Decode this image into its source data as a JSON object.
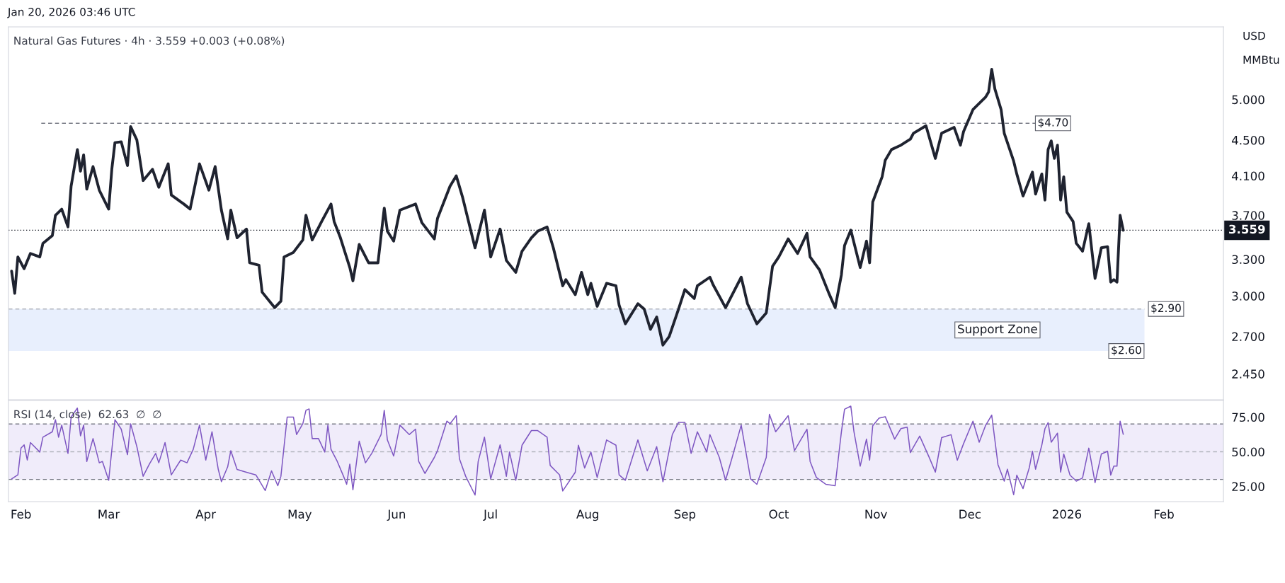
{
  "chart_data": [
    {
      "type": "line",
      "title": "Natural Gas Futures · 4h · 3.559 +0.003 (+0.08%)",
      "annotations": [
        "Jan 20, 2026 03:46 UTC",
        "USD",
        "MMBtu",
        {
          "text": "$2.60",
          "x": "2026-01-20",
          "y": 2.6
        }
      ],
      "x": [
        "2025-01-29",
        "2025-01-30",
        "2025-01-31",
        "2025-02-02",
        "2025-02-04",
        "2025-02-07",
        "2025-02-08",
        "2025-02-11",
        "2025-02-12",
        "2025-02-14",
        "2025-02-16",
        "2025-02-17",
        "2025-02-19",
        "2025-02-20",
        "2025-02-21",
        "2025-02-22",
        "2025-02-24",
        "2025-02-26",
        "2025-03-01",
        "2025-03-02",
        "2025-03-03",
        "2025-03-05",
        "2025-03-07",
        "2025-03-08",
        "2025-03-10",
        "2025-03-12",
        "2025-03-15",
        "2025-03-17",
        "2025-03-20",
        "2025-03-21",
        "2025-03-25",
        "2025-03-27",
        "2025-03-30",
        "2025-04-02",
        "2025-04-04",
        "2025-04-06",
        "2025-04-08",
        "2025-04-09",
        "2025-04-11",
        "2025-04-14",
        "2025-04-15",
        "2025-04-18",
        "2025-04-19",
        "2025-04-23",
        "2025-04-25",
        "2025-04-26",
        "2025-04-29",
        "2025-05-02",
        "2025-05-03",
        "2025-05-05",
        "2025-05-08",
        "2025-05-11",
        "2025-05-12",
        "2025-05-14",
        "2025-05-17",
        "2025-05-18",
        "2025-05-20",
        "2025-05-23",
        "2025-05-26",
        "2025-05-28",
        "2025-05-29",
        "2025-05-31",
        "2025-06-02",
        "2025-06-07",
        "2025-06-09",
        "2025-06-13",
        "2025-06-14",
        "2025-06-18",
        "2025-06-20",
        "2025-06-22",
        "2025-06-26",
        "2025-06-29",
        "2025-07-01",
        "2025-07-04",
        "2025-07-06",
        "2025-07-09",
        "2025-07-11",
        "2025-07-14",
        "2025-07-16",
        "2025-07-19",
        "2025-07-21",
        "2025-07-24",
        "2025-07-25",
        "2025-07-28",
        "2025-07-30",
        "2025-08-01",
        "2025-08-02",
        "2025-08-04",
        "2025-08-07",
        "2025-08-10",
        "2025-08-11",
        "2025-08-13",
        "2025-08-17",
        "2025-08-19",
        "2025-08-21",
        "2025-08-23",
        "2025-08-25",
        "2025-08-27",
        "2025-08-30",
        "2025-09-01",
        "2025-09-04",
        "2025-09-05",
        "2025-09-09",
        "2025-09-10",
        "2025-09-14",
        "2025-09-19",
        "2025-09-21",
        "2025-09-24",
        "2025-09-27",
        "2025-09-29",
        "2025-10-01",
        "2025-10-04",
        "2025-10-07",
        "2025-10-10",
        "2025-10-11",
        "2025-10-14",
        "2025-10-17",
        "2025-10-19",
        "2025-10-21",
        "2025-10-22",
        "2025-10-24",
        "2025-10-27",
        "2025-10-29",
        "2025-10-30",
        "2025-10-31",
        "2025-11-03",
        "2025-11-04",
        "2025-11-06",
        "2025-11-09",
        "2025-11-12",
        "2025-11-13",
        "2025-11-17",
        "2025-11-20",
        "2025-11-22",
        "2025-11-26",
        "2025-11-28",
        "2025-11-29",
        "2025-12-02",
        "2025-12-06",
        "2025-12-07",
        "2025-12-08",
        "2025-12-09",
        "2025-12-11",
        "2025-12-12",
        "2025-12-15",
        "2025-12-16",
        "2025-12-18",
        "2025-12-21",
        "2025-12-22",
        "2025-12-24",
        "2025-12-25",
        "2025-12-26",
        "2025-12-27",
        "2025-12-28",
        "2025-12-29",
        "2025-12-30",
        "2025-12-31",
        "2026-01-01",
        "2026-01-03",
        "2026-01-04",
        "2026-01-06",
        "2026-01-08",
        "2026-01-10",
        "2026-01-12",
        "2026-01-14",
        "2026-01-15",
        "2026-01-16",
        "2026-01-17",
        "2026-01-18",
        "2026-01-19"
      ],
      "series": [
        {
          "color": "#1f2330",
          "values": [
            3.2,
            3.02,
            3.32,
            3.22,
            3.35,
            3.32,
            3.44,
            3.51,
            3.7,
            3.76,
            3.59,
            3.99,
            4.39,
            4.15,
            4.33,
            3.96,
            4.2,
            3.95,
            3.76,
            4.17,
            4.47,
            4.48,
            4.21,
            4.66,
            4.5,
            4.05,
            4.17,
            3.98,
            4.23,
            3.9,
            3.81,
            3.76,
            4.23,
            3.95,
            4.2,
            3.75,
            3.48,
            3.75,
            3.49,
            3.57,
            3.27,
            3.25,
            3.03,
            2.91,
            2.96,
            3.32,
            3.36,
            3.47,
            3.7,
            3.47,
            3.64,
            3.81,
            3.64,
            3.49,
            3.23,
            3.12,
            3.43,
            3.27,
            3.27,
            3.77,
            3.55,
            3.46,
            3.75,
            3.81,
            3.63,
            3.48,
            3.67,
            3.99,
            4.1,
            3.88,
            3.4,
            3.75,
            3.32,
            3.57,
            3.29,
            3.19,
            3.37,
            3.49,
            3.55,
            3.59,
            3.4,
            3.08,
            3.13,
            3.01,
            3.19,
            3.01,
            3.1,
            2.92,
            3.1,
            3.08,
            2.93,
            2.79,
            2.94,
            2.9,
            2.75,
            2.84,
            2.64,
            2.7,
            2.9,
            3.05,
            2.98,
            3.08,
            3.15,
            3.09,
            2.91,
            3.15,
            2.94,
            2.79,
            2.87,
            3.24,
            3.32,
            3.48,
            3.35,
            3.53,
            3.32,
            3.21,
            3.02,
            2.91,
            3.17,
            3.42,
            3.56,
            3.23,
            3.46,
            3.27,
            3.83,
            4.09,
            4.27,
            4.39,
            4.44,
            4.51,
            4.58,
            4.67,
            4.29,
            4.58,
            4.65,
            4.44,
            4.6,
            4.87,
            5.03,
            5.1,
            5.41,
            5.14,
            4.87,
            4.58,
            4.26,
            4.12,
            3.89,
            4.14,
            3.91,
            4.12,
            3.85,
            4.39,
            4.49,
            4.29,
            4.44,
            3.85,
            4.09,
            3.73,
            3.64,
            3.44,
            3.37,
            3.62,
            3.14,
            3.4,
            3.41,
            3.11,
            3.13,
            3.11,
            3.7,
            3.559
          ]
        }
      ],
      "log": true,
      "xlim": [
        "2025-01-28",
        "2026-02-20"
      ],
      "ylim": [
        2.29,
        6.04
      ],
      "yticks": [
        {
          "value": 2.45,
          "label": "2.450"
        },
        {
          "value": 2.7,
          "label": "2.700"
        },
        {
          "value": 3.0,
          "label": "3.000"
        },
        {
          "value": 3.3,
          "label": "3.300"
        },
        {
          "value": 3.7,
          "label": "3.700"
        },
        {
          "value": 4.1,
          "label": "4.100"
        },
        {
          "value": 4.5,
          "label": "4.500"
        },
        {
          "value": 5.0,
          "label": "5.000"
        }
      ],
      "ref_lines": [
        {
          "axis": "y",
          "value": 4.7,
          "label": "$4.70",
          "line_style": "dashed",
          "color": "#787b86"
        },
        {
          "axis": "y",
          "value": 3.559,
          "label": "3.559",
          "line_style": "dotted",
          "color": "#131722"
        },
        {
          "axis": "y",
          "value": 2.9,
          "label": "$2.90",
          "line_style": "dashed",
          "color": "#b2b5be"
        }
      ],
      "bands": [
        {
          "axis": "y",
          "from": 2.6,
          "to": 2.9,
          "label": "Support Zone",
          "color": "#e8effd"
        }
      ],
      "tick_labels": "y"
    },
    {
      "type": "line",
      "title": "RSI (14, close)  62.63  ∅  ∅",
      "x": [
        "2025-01-29",
        "2025-01-31",
        "2025-02-01",
        "2025-02-02",
        "2025-02-03",
        "2025-02-04",
        "2025-02-07",
        "2025-02-08",
        "2025-02-11",
        "2025-02-12",
        "2025-02-13",
        "2025-02-14",
        "2025-02-16",
        "2025-02-17",
        "2025-02-19",
        "2025-02-20",
        "2025-02-21",
        "2025-02-22",
        "2025-02-24",
        "2025-02-26",
        "2025-02-27",
        "2025-03-01",
        "2025-03-03",
        "2025-03-05",
        "2025-03-07",
        "2025-03-08",
        "2025-03-10",
        "2025-03-12",
        "2025-03-14",
        "2025-03-16",
        "2025-03-17",
        "2025-03-19",
        "2025-03-21",
        "2025-03-24",
        "2025-03-26",
        "2025-03-28",
        "2025-03-30",
        "2025-04-01",
        "2025-04-03",
        "2025-04-05",
        "2025-04-06",
        "2025-04-08",
        "2025-04-09",
        "2025-04-11",
        "2025-04-14",
        "2025-04-17",
        "2025-04-20",
        "2025-04-22",
        "2025-04-24",
        "2025-04-25",
        "2025-04-27",
        "2025-04-29",
        "2025-04-30",
        "2025-05-02",
        "2025-05-03",
        "2025-05-04",
        "2025-05-05",
        "2025-05-07",
        "2025-05-09",
        "2025-05-10",
        "2025-05-11",
        "2025-05-13",
        "2025-05-15",
        "2025-05-16",
        "2025-05-17",
        "2025-05-18",
        "2025-05-20",
        "2025-05-22",
        "2025-05-24",
        "2025-05-27",
        "2025-05-28",
        "2025-05-29",
        "2025-05-31",
        "2025-06-02",
        "2025-06-05",
        "2025-06-07",
        "2025-06-08",
        "2025-06-10",
        "2025-06-13",
        "2025-06-14",
        "2025-06-17",
        "2025-06-18",
        "2025-06-20",
        "2025-06-21",
        "2025-06-23",
        "2025-06-26",
        "2025-06-27",
        "2025-06-29",
        "2025-07-01",
        "2025-07-04",
        "2025-07-06",
        "2025-07-07",
        "2025-07-09",
        "2025-07-11",
        "2025-07-14",
        "2025-07-16",
        "2025-07-19",
        "2025-07-20",
        "2025-07-23",
        "2025-07-24",
        "2025-07-28",
        "2025-07-29",
        "2025-07-31",
        "2025-08-02",
        "2025-08-04",
        "2025-08-07",
        "2025-08-10",
        "2025-08-11",
        "2025-08-13",
        "2025-08-17",
        "2025-08-20",
        "2025-08-23",
        "2025-08-25",
        "2025-08-28",
        "2025-08-30",
        "2025-09-01",
        "2025-09-03",
        "2025-09-05",
        "2025-09-08",
        "2025-09-09",
        "2025-09-12",
        "2025-09-14",
        "2025-09-16",
        "2025-09-19",
        "2025-09-22",
        "2025-09-24",
        "2025-09-27",
        "2025-09-28",
        "2025-09-30",
        "2025-10-04",
        "2025-10-06",
        "2025-10-10",
        "2025-10-11",
        "2025-10-13",
        "2025-10-16",
        "2025-10-19",
        "2025-10-20",
        "2025-10-21",
        "2025-10-22",
        "2025-10-24",
        "2025-10-25",
        "2025-10-27",
        "2025-10-29",
        "2025-10-30",
        "2025-10-31",
        "2025-11-02",
        "2025-11-04",
        "2025-11-07",
        "2025-11-09",
        "2025-11-11",
        "2025-11-12",
        "2025-11-15",
        "2025-11-18",
        "2025-11-20",
        "2025-11-22",
        "2025-11-25",
        "2025-11-27",
        "2025-11-29",
        "2025-12-02",
        "2025-12-04",
        "2025-12-06",
        "2025-12-08",
        "2025-12-10",
        "2025-12-12",
        "2025-12-13",
        "2025-12-15",
        "2025-12-16",
        "2025-12-18",
        "2025-12-20",
        "2025-12-21",
        "2025-12-22",
        "2025-12-24",
        "2025-12-25",
        "2025-12-26",
        "2025-12-27",
        "2025-12-29",
        "2025-12-30",
        "2025-12-31",
        "2026-01-02",
        "2026-01-04",
        "2026-01-06",
        "2026-01-08",
        "2026-01-10",
        "2026-01-12",
        "2026-01-14",
        "2026-01-15",
        "2026-01-16",
        "2026-01-17",
        "2026-01-18",
        "2026-01-19"
      ],
      "series": [
        {
          "color": "#7e57c2",
          "values": [
            30.4,
            33.3,
            52.7,
            55.0,
            44.0,
            56.6,
            49.8,
            60.5,
            64.4,
            73.1,
            60.5,
            69.2,
            48.8,
            75.0,
            81.5,
            61.5,
            69.2,
            43.0,
            59.5,
            42.0,
            43.0,
            29.4,
            73.1,
            66.3,
            47.9,
            70.2,
            53.7,
            32.3,
            41.1,
            48.8,
            42.0,
            56.6,
            33.3,
            44.0,
            42.0,
            51.7,
            69.2,
            44.0,
            64.4,
            37.2,
            28.4,
            39.1,
            50.8,
            37.2,
            35.2,
            33.3,
            22.0,
            36.2,
            25.5,
            32.3,
            75.0,
            75.0,
            62.4,
            70.2,
            79.9,
            80.9,
            59.5,
            59.5,
            49.8,
            69.2,
            51.7,
            43.0,
            32.3,
            26.5,
            41.1,
            22.6,
            57.6,
            42.0,
            48.8,
            62.4,
            79.9,
            58.5,
            46.9,
            69.2,
            62.4,
            66.3,
            43.0,
            34.3,
            45.9,
            50.8,
            72.1,
            70.2,
            76.0,
            45.0,
            32.3,
            18.7,
            43.0,
            60.5,
            30.4,
            55.0,
            32.3,
            49.8,
            29.4,
            54.7,
            65.3,
            65.3,
            60.5,
            40.1,
            33.3,
            21.7,
            35.2,
            54.7,
            38.2,
            49.8,
            31.4,
            58.5,
            54.7,
            33.3,
            29.4,
            58.5,
            36.2,
            53.7,
            28.4,
            62.4,
            71.2,
            71.2,
            48.8,
            64.4,
            49.8,
            62.4,
            45.9,
            29.4,
            45.0,
            69.2,
            30.4,
            26.5,
            45.9,
            77.0,
            64.4,
            76.0,
            50.8,
            66.3,
            43.0,
            31.4,
            26.5,
            25.5,
            45.0,
            64.5,
            80.7,
            82.9,
            64.5,
            39.6,
            59.1,
            43.9,
            68.8,
            74.2,
            75.3,
            59.1,
            66.7,
            67.7,
            49.4,
            61.3,
            46.1,
            35.3,
            60.2,
            62.3,
            43.9,
            55.8,
            72.1,
            56.9,
            68.8,
            76.4,
            40.7,
            28.8,
            37.4,
            19.0,
            33.1,
            23.4,
            38.5,
            50.4,
            37.4,
            54.8,
            66.7,
            71.0,
            56.9,
            63.4,
            35.3,
            48.3,
            33.1,
            28.8,
            31.0,
            52.6,
            27.7,
            48.3,
            50.4,
            33.1,
            39.6,
            39.6,
            72.1,
            62.6
          ]
        }
      ],
      "xlim": [
        "2025-01-28",
        "2026-02-20"
      ],
      "ylim": [
        14,
        87
      ],
      "xticks": [
        {
          "value": "2025-02-01",
          "label": "Feb"
        },
        {
          "value": "2025-03-01",
          "label": "Mar"
        },
        {
          "value": "2025-04-01",
          "label": "Apr"
        },
        {
          "value": "2025-05-01",
          "label": "May"
        },
        {
          "value": "2025-06-01",
          "label": "Jun"
        },
        {
          "value": "2025-07-01",
          "label": "Jul"
        },
        {
          "value": "2025-08-01",
          "label": "Aug"
        },
        {
          "value": "2025-09-01",
          "label": "Sep"
        },
        {
          "value": "2025-10-01",
          "label": "Oct"
        },
        {
          "value": "2025-11-01",
          "label": "Nov"
        },
        {
          "value": "2025-12-01",
          "label": "Dec"
        },
        {
          "value": "2026-01-01",
          "label": "2026"
        },
        {
          "value": "2026-02-01",
          "label": "Feb"
        }
      ],
      "yticks": [
        {
          "value": 25,
          "label": "25.00"
        },
        {
          "value": 50,
          "label": "50.00"
        },
        {
          "value": 75,
          "label": "75.00"
        }
      ],
      "ref_lines": [
        {
          "axis": "y",
          "value": 70,
          "line_style": "dashed",
          "color": "#787b86"
        },
        {
          "axis": "y",
          "value": 50,
          "line_style": "dashed",
          "color": "#b2b5be"
        },
        {
          "axis": "y",
          "value": 30,
          "line_style": "dashed",
          "color": "#787b86"
        }
      ],
      "bands": [
        {
          "axis": "y",
          "from": 30,
          "to": 70,
          "color": "#f0ecfa"
        }
      ]
    }
  ]
}
